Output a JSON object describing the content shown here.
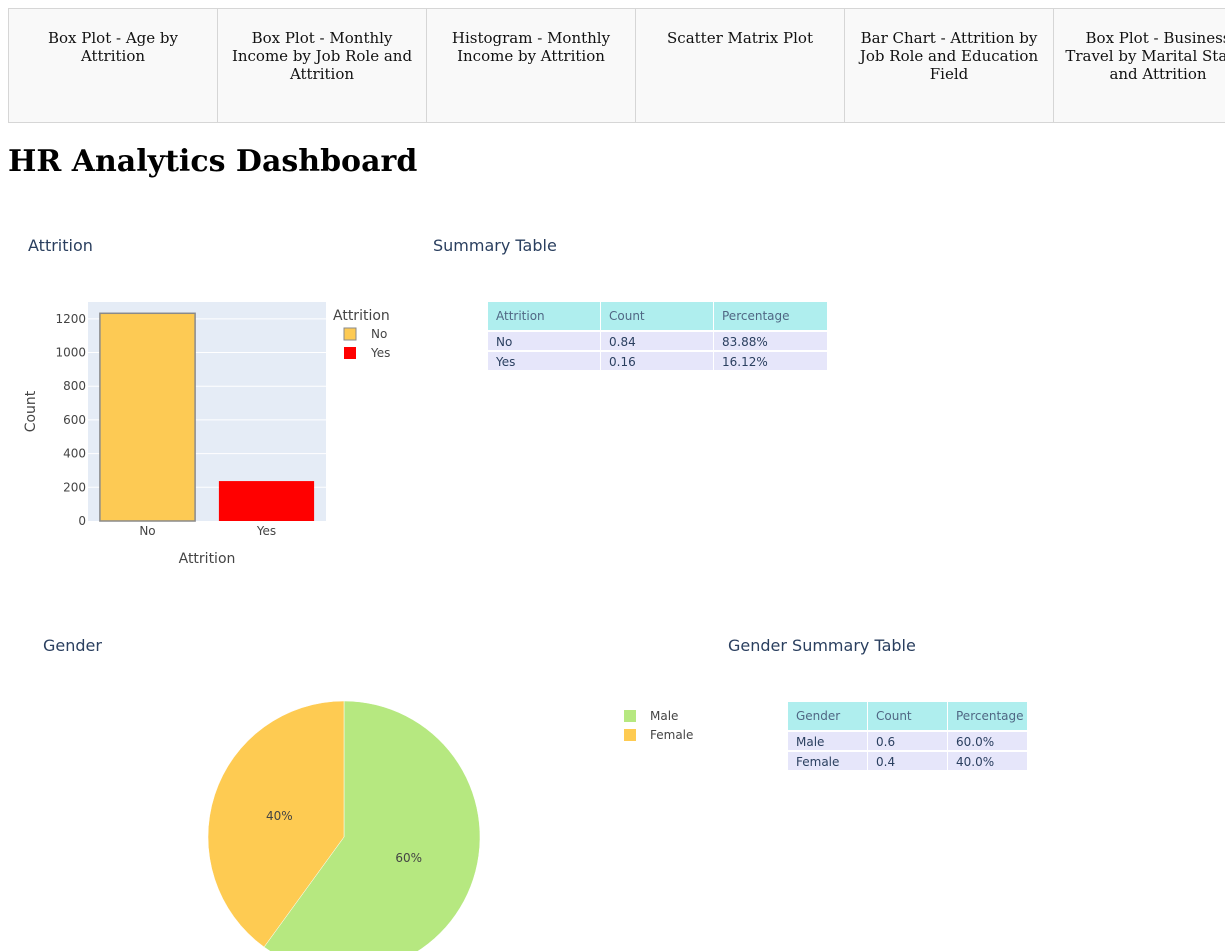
{
  "tabs": [
    {
      "label": "Box Plot - Age by Attrition"
    },
    {
      "label": "Box Plot - Monthly Income by Job Role and Attrition"
    },
    {
      "label": "Histogram - Monthly Income by Attrition"
    },
    {
      "label": "Scatter Matrix Plot"
    },
    {
      "label": "Bar Chart - Attrition by Job Role and Education Field"
    },
    {
      "label": "Box Plot - Business Travel by Marital Status and Attrition"
    }
  ],
  "page_title": "HR Analytics Dashboard",
  "attrition_chart": {
    "title": "Attrition",
    "legend_title": "Attrition"
  },
  "summary_table": {
    "title": "Summary Table",
    "headers": [
      "Attrition",
      "Count",
      "Percentage"
    ],
    "rows": [
      [
        "No",
        "0.84",
        "83.88%"
      ],
      [
        "Yes",
        "0.16",
        "16.12%"
      ]
    ]
  },
  "gender_chart": {
    "title": "Gender"
  },
  "gender_table": {
    "title": "Gender Summary Table",
    "headers": [
      "Gender",
      "Count",
      "Percentage"
    ],
    "rows": [
      [
        "Male",
        "0.6",
        "60.0%"
      ],
      [
        "Female",
        "0.4",
        "40.0%"
      ]
    ]
  },
  "colors": {
    "no": "#fdca54",
    "yes": "#ff0000",
    "male": "#b6e880",
    "female": "#fecb52",
    "plot_bg": "#e5ecf6",
    "table_header": "#afeeee",
    "table_cell": "#e6e6fa"
  },
  "chart_data": [
    {
      "type": "bar",
      "title": "Attrition",
      "categories": [
        "No",
        "Yes"
      ],
      "series": [
        {
          "name": "No",
          "values": [
            1233,
            null
          ]
        },
        {
          "name": "Yes",
          "values": [
            null,
            237
          ]
        }
      ],
      "xlabel": "Attrition",
      "ylabel": "Count",
      "ylim": [
        0,
        1300
      ],
      "yticks": [
        0,
        200,
        400,
        600,
        800,
        1000,
        1200
      ],
      "grid": true,
      "legend": "right"
    },
    {
      "type": "pie",
      "title": "Gender",
      "labels": [
        "Male",
        "Female"
      ],
      "values": [
        60,
        40
      ],
      "slice_labels": [
        "60%",
        "40%"
      ],
      "legend": "right"
    }
  ]
}
